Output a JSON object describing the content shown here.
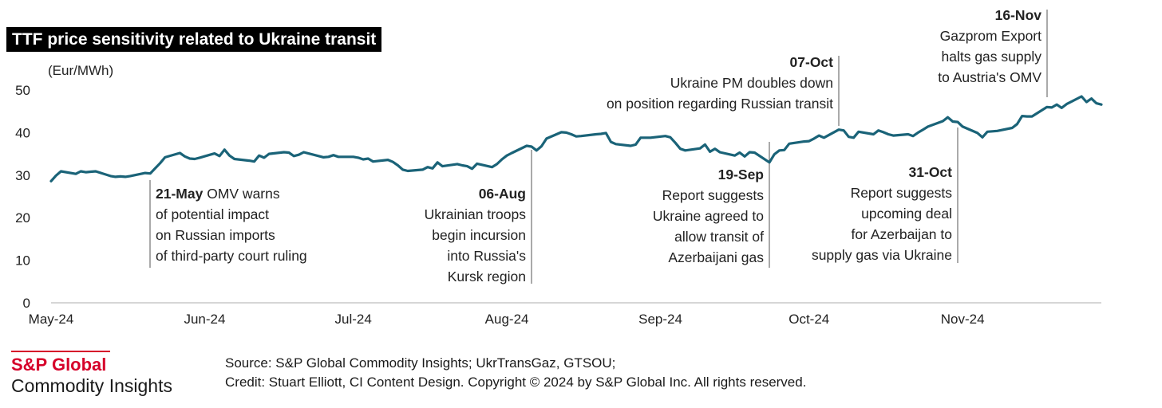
{
  "title": "TTF price sensitivity related to Ukraine transit",
  "brand": {
    "name": "S&P Global",
    "subtitle": "Commodity Insights"
  },
  "footer": {
    "source": "Source: S&P Global Commodity Insights; UkrTransGaz, GTSOU;",
    "credit": "Credit: Stuart Elliott, CI Content Design.  Copyright © 2024 by S&P Global Inc.  All rights reserved."
  },
  "colors": {
    "line": "#1a6378",
    "axis": "#c8c8c8",
    "brand": "#d6002a"
  },
  "chart_data": {
    "type": "line",
    "title": "TTF price sensitivity related to Ukraine transit",
    "ylabel": "(Eur/MWh)",
    "xlabel": "",
    "ylim": [
      0,
      50
    ],
    "yticks": [
      0,
      10,
      20,
      30,
      40,
      50
    ],
    "x_range": [
      "2024-05-01",
      "2024-11-29"
    ],
    "x_tick_labels": [
      {
        "label": "May-24",
        "date": "2024-05-01"
      },
      {
        "label": "Jun-24",
        "date": "2024-06-01"
      },
      {
        "label": "Jul-24",
        "date": "2024-07-01"
      },
      {
        "label": "Aug-24",
        "date": "2024-08-01"
      },
      {
        "label": "Sep-24",
        "date": "2024-09-01"
      },
      {
        "label": "Oct-24",
        "date": "2024-10-01"
      },
      {
        "label": "Nov-24",
        "date": "2024-11-01"
      }
    ],
    "grid": false,
    "series": [
      {
        "points": [
          [
            "2024-05-01",
            28.6
          ],
          [
            "2024-05-02",
            29.9
          ],
          [
            "2024-05-03",
            30.9
          ],
          [
            "2024-05-06",
            30.3
          ],
          [
            "2024-05-07",
            30.9
          ],
          [
            "2024-05-08",
            30.7
          ],
          [
            "2024-05-09",
            30.8
          ],
          [
            "2024-05-10",
            30.9
          ],
          [
            "2024-05-13",
            29.8
          ],
          [
            "2024-05-14",
            29.6
          ],
          [
            "2024-05-15",
            29.7
          ],
          [
            "2024-05-16",
            29.6
          ],
          [
            "2024-05-17",
            29.8
          ],
          [
            "2024-05-20",
            30.5
          ],
          [
            "2024-05-21",
            30.4
          ],
          [
            "2024-05-22",
            31.6
          ],
          [
            "2024-05-23",
            32.8
          ],
          [
            "2024-05-24",
            34.2
          ],
          [
            "2024-05-27",
            35.2
          ],
          [
            "2024-05-28",
            34.4
          ],
          [
            "2024-05-29",
            33.9
          ],
          [
            "2024-05-30",
            33.8
          ],
          [
            "2024-05-31",
            34.1
          ],
          [
            "2024-06-03",
            35.1
          ],
          [
            "2024-06-04",
            34.5
          ],
          [
            "2024-06-05",
            36.0
          ],
          [
            "2024-06-06",
            34.6
          ],
          [
            "2024-06-07",
            33.8
          ],
          [
            "2024-06-10",
            33.4
          ],
          [
            "2024-06-11",
            33.2
          ],
          [
            "2024-06-12",
            34.6
          ],
          [
            "2024-06-13",
            34.1
          ],
          [
            "2024-06-14",
            35.0
          ],
          [
            "2024-06-17",
            35.4
          ],
          [
            "2024-06-18",
            35.3
          ],
          [
            "2024-06-19",
            34.5
          ],
          [
            "2024-06-20",
            34.8
          ],
          [
            "2024-06-21",
            35.4
          ],
          [
            "2024-06-24",
            34.5
          ],
          [
            "2024-06-25",
            34.2
          ],
          [
            "2024-06-26",
            34.3
          ],
          [
            "2024-06-27",
            34.7
          ],
          [
            "2024-06-28",
            34.3
          ],
          [
            "2024-07-01",
            34.3
          ],
          [
            "2024-07-02",
            34.1
          ],
          [
            "2024-07-03",
            33.7
          ],
          [
            "2024-07-04",
            33.9
          ],
          [
            "2024-07-05",
            33.2
          ],
          [
            "2024-07-08",
            33.6
          ],
          [
            "2024-07-09",
            33.1
          ],
          [
            "2024-07-10",
            32.3
          ],
          [
            "2024-07-11",
            31.3
          ],
          [
            "2024-07-12",
            31.0
          ],
          [
            "2024-07-15",
            31.3
          ],
          [
            "2024-07-16",
            31.9
          ],
          [
            "2024-07-17",
            31.6
          ],
          [
            "2024-07-18",
            33.0
          ],
          [
            "2024-07-19",
            32.1
          ],
          [
            "2024-07-22",
            32.6
          ],
          [
            "2024-07-23",
            32.3
          ],
          [
            "2024-07-24",
            32.1
          ],
          [
            "2024-07-25",
            31.5
          ],
          [
            "2024-07-26",
            32.7
          ],
          [
            "2024-07-29",
            31.9
          ],
          [
            "2024-07-30",
            32.6
          ],
          [
            "2024-07-31",
            33.7
          ],
          [
            "2024-08-01",
            34.6
          ],
          [
            "2024-08-02",
            35.2
          ],
          [
            "2024-08-05",
            36.9
          ],
          [
            "2024-08-06",
            36.7
          ],
          [
            "2024-08-07",
            35.8
          ],
          [
            "2024-08-08",
            36.8
          ],
          [
            "2024-08-09",
            38.6
          ],
          [
            "2024-08-12",
            40.1
          ],
          [
            "2024-08-13",
            40.0
          ],
          [
            "2024-08-14",
            39.6
          ],
          [
            "2024-08-15",
            39.1
          ],
          [
            "2024-08-16",
            39.2
          ],
          [
            "2024-08-19",
            39.6
          ],
          [
            "2024-08-20",
            39.7
          ],
          [
            "2024-08-21",
            39.9
          ],
          [
            "2024-08-22",
            37.8
          ],
          [
            "2024-08-23",
            37.3
          ],
          [
            "2024-08-26",
            36.9
          ],
          [
            "2024-08-27",
            37.2
          ],
          [
            "2024-08-28",
            38.8
          ],
          [
            "2024-08-29",
            38.8
          ],
          [
            "2024-08-30",
            38.8
          ],
          [
            "2024-09-02",
            39.2
          ],
          [
            "2024-09-03",
            38.9
          ],
          [
            "2024-09-04",
            37.6
          ],
          [
            "2024-09-05",
            36.2
          ],
          [
            "2024-09-06",
            35.8
          ],
          [
            "2024-09-09",
            36.3
          ],
          [
            "2024-09-10",
            37.2
          ],
          [
            "2024-09-11",
            35.5
          ],
          [
            "2024-09-12",
            36.2
          ],
          [
            "2024-09-13",
            35.4
          ],
          [
            "2024-09-16",
            34.6
          ],
          [
            "2024-09-17",
            35.3
          ],
          [
            "2024-09-18",
            34.4
          ],
          [
            "2024-09-19",
            35.4
          ],
          [
            "2024-09-20",
            35.3
          ],
          [
            "2024-09-23",
            33.0
          ],
          [
            "2024-09-24",
            34.9
          ],
          [
            "2024-09-25",
            35.8
          ],
          [
            "2024-09-26",
            35.9
          ],
          [
            "2024-09-27",
            37.4
          ],
          [
            "2024-09-30",
            37.9
          ],
          [
            "2024-10-01",
            38.0
          ],
          [
            "2024-10-02",
            38.6
          ],
          [
            "2024-10-03",
            39.3
          ],
          [
            "2024-10-04",
            38.8
          ],
          [
            "2024-10-07",
            40.7
          ],
          [
            "2024-10-08",
            40.5
          ],
          [
            "2024-10-09",
            39.0
          ],
          [
            "2024-10-10",
            38.8
          ],
          [
            "2024-10-11",
            40.2
          ],
          [
            "2024-10-14",
            39.6
          ],
          [
            "2024-10-15",
            40.5
          ],
          [
            "2024-10-16",
            40.1
          ],
          [
            "2024-10-17",
            39.6
          ],
          [
            "2024-10-18",
            39.3
          ],
          [
            "2024-10-21",
            39.6
          ],
          [
            "2024-10-22",
            39.2
          ],
          [
            "2024-10-23",
            40.0
          ],
          [
            "2024-10-24",
            40.7
          ],
          [
            "2024-10-25",
            41.4
          ],
          [
            "2024-10-28",
            42.7
          ],
          [
            "2024-10-29",
            43.6
          ],
          [
            "2024-10-30",
            42.6
          ],
          [
            "2024-10-31",
            42.5
          ],
          [
            "2024-11-01",
            41.4
          ],
          [
            "2024-11-04",
            39.9
          ],
          [
            "2024-11-05",
            38.9
          ],
          [
            "2024-11-06",
            40.2
          ],
          [
            "2024-11-07",
            40.3
          ],
          [
            "2024-11-08",
            40.4
          ],
          [
            "2024-11-11",
            41.1
          ],
          [
            "2024-11-12",
            42.0
          ],
          [
            "2024-11-13",
            43.9
          ],
          [
            "2024-11-14",
            43.8
          ],
          [
            "2024-11-15",
            43.8
          ],
          [
            "2024-11-18",
            46.0
          ],
          [
            "2024-11-19",
            45.9
          ],
          [
            "2024-11-20",
            46.6
          ],
          [
            "2024-11-21",
            45.8
          ],
          [
            "2024-11-22",
            46.7
          ],
          [
            "2024-11-25",
            48.5
          ],
          [
            "2024-11-26",
            47.2
          ],
          [
            "2024-11-27",
            48.0
          ],
          [
            "2024-11-28",
            46.9
          ],
          [
            "2024-11-29",
            46.6
          ]
        ]
      }
    ],
    "annotations": [
      {
        "date": "2024-05-21",
        "value": 30.4,
        "align": "left",
        "position": "below",
        "lines": [
          {
            "bold": "21-May",
            "text": " OMV warns"
          },
          {
            "text": "of potential impact"
          },
          {
            "text": "on Russian imports"
          },
          {
            "text": "of third-party court ruling"
          }
        ]
      },
      {
        "date": "2024-08-06",
        "value": 36.7,
        "align": "right",
        "position": "below",
        "lines": [
          {
            "bold": "06-Aug"
          },
          {
            "text": "Ukrainian troops"
          },
          {
            "text": "begin incursion"
          },
          {
            "text": "into Russia's"
          },
          {
            "text": "Kursk region"
          }
        ]
      },
      {
        "date": "2024-09-23",
        "value": 33.0,
        "align": "right",
        "position": "below",
        "lines": [
          {
            "bold": "19-Sep"
          },
          {
            "text": "Report suggests"
          },
          {
            "text": "Ukraine agreed to"
          },
          {
            "text": "allow transit of"
          },
          {
            "text": "Azerbaijani gas"
          }
        ]
      },
      {
        "date": "2024-10-07",
        "value": 40.7,
        "align": "right",
        "position": "above",
        "lines": [
          {
            "bold": "07-Oct"
          },
          {
            "text": "Ukraine PM doubles down"
          },
          {
            "text": "on position regarding Russian transit"
          }
        ]
      },
      {
        "date": "2024-10-31",
        "value": 42.5,
        "align": "right",
        "position": "below",
        "lines": [
          {
            "bold": "31-Oct"
          },
          {
            "text": "Report suggests"
          },
          {
            "text": "upcoming deal"
          },
          {
            "text": "for Azerbaijan to"
          },
          {
            "text": "supply gas via Ukraine"
          }
        ]
      },
      {
        "date": "2024-11-18",
        "value": 46.0,
        "align": "right",
        "position": "above",
        "lines": [
          {
            "bold": "16-Nov"
          },
          {
            "text": "Gazprom Export"
          },
          {
            "text": "halts gas supply"
          },
          {
            "text": "to Austria's OMV"
          }
        ]
      }
    ]
  }
}
